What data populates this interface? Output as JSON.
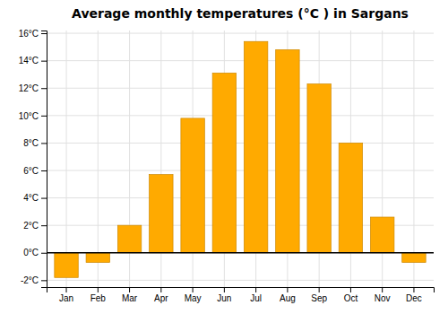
{
  "chart_data": {
    "type": "bar",
    "title": "Average monthly temperatures (°C ) in Sargans",
    "categories": [
      "Jan",
      "Feb",
      "Mar",
      "Apr",
      "May",
      "Jun",
      "Jul",
      "Aug",
      "Sep",
      "Oct",
      "Nov",
      "Dec"
    ],
    "values": [
      -1.8,
      -0.7,
      2.0,
      5.7,
      9.8,
      13.1,
      15.4,
      14.8,
      12.3,
      8.0,
      2.6,
      -0.7
    ],
    "color": "#FFAA00",
    "ylim": [
      -2.5,
      16.2
    ],
    "yticks": [
      {
        "value": -2,
        "label": "-2°C"
      },
      {
        "value": 0,
        "label": "0°C"
      },
      {
        "value": 2,
        "label": "2°C"
      },
      {
        "value": 4,
        "label": "4°C"
      },
      {
        "value": 6,
        "label": "6°C"
      },
      {
        "value": 8,
        "label": "8°C"
      },
      {
        "value": 10,
        "label": "10°C"
      },
      {
        "value": 12,
        "label": "12°C"
      },
      {
        "value": 14,
        "label": "14°C"
      },
      {
        "value": 16,
        "label": "16°C"
      }
    ],
    "grid": true
  }
}
